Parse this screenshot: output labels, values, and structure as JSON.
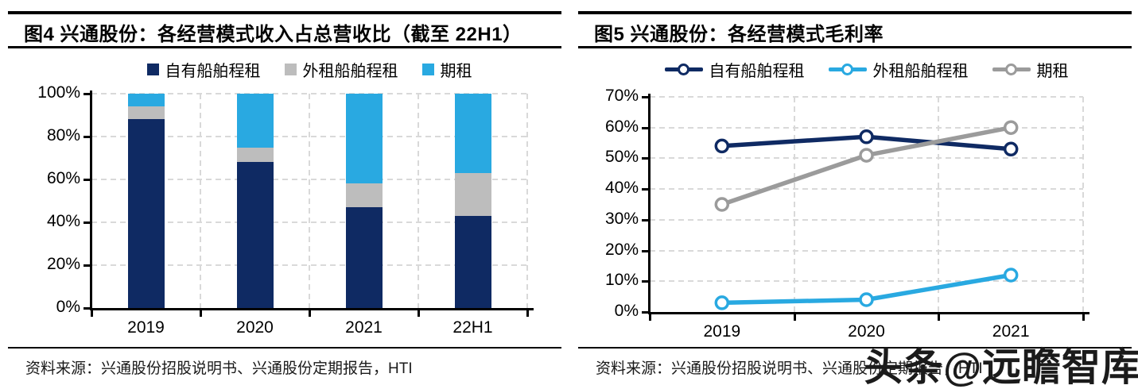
{
  "watermark": "头条@远瞻智库",
  "panels": [
    {
      "source": "资料来源：兴通股份招股说明书、兴通股份定期报告，HTI"
    },
    {
      "source": "资料来源：兴通股份招股说明书、兴通股份定期报告，HTI"
    }
  ],
  "colors": {
    "navy": "#0f2a63",
    "cyan": "#29a9e1",
    "bar_gray": "#bdbdbd",
    "line_gray": "#9b9b9b",
    "grid": "#d9d9d9",
    "axis": "#000000",
    "rule": "#000000",
    "source_text": "#1a1a1a"
  },
  "chart_data": [
    {
      "type": "bar",
      "stacked": true,
      "title": "图4 兴通股份：各经营模式收入占总营收比（截至 22H1）",
      "categories": [
        "2019",
        "2020",
        "2021",
        "22H1"
      ],
      "series": [
        {
          "name": "自有船舶程租",
          "color_key": "navy",
          "values": [
            88,
            68,
            47,
            43
          ]
        },
        {
          "name": "外租船舶程租",
          "color_key": "bar_gray",
          "values": [
            6,
            7,
            11,
            20
          ]
        },
        {
          "name": "期租",
          "color_key": "cyan",
          "values": [
            6,
            25,
            42,
            37
          ]
        }
      ],
      "ylabel_format": "percent",
      "ylim": [
        0,
        100
      ],
      "ytick_step": 20,
      "ytick_labels": [
        "0%",
        "20%",
        "40%",
        "60%",
        "80%",
        "100%"
      ],
      "grid": true,
      "legend_position": "top"
    },
    {
      "type": "line",
      "title": "图5 兴通股份：各经营模式毛利率",
      "categories": [
        "2019",
        "2020",
        "2021"
      ],
      "series": [
        {
          "name": "自有船舶程租",
          "color_key": "navy",
          "values": [
            54,
            57,
            53
          ]
        },
        {
          "name": "外租船舶程租",
          "color_key": "cyan",
          "values": [
            3,
            4,
            12
          ]
        },
        {
          "name": "期租",
          "color_key": "line_gray",
          "values": [
            35,
            51,
            60
          ]
        }
      ],
      "ylabel_format": "percent",
      "ylim": [
        0,
        70
      ],
      "ytick_step": 10,
      "ytick_labels": [
        "0%",
        "10%",
        "20%",
        "30%",
        "40%",
        "50%",
        "60%",
        "70%"
      ],
      "grid": true,
      "legend_position": "top",
      "marker": "circle-open"
    }
  ]
}
